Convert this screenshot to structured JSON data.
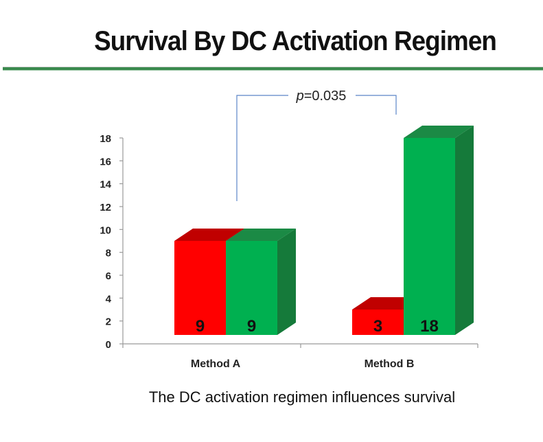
{
  "title": "Survival By DC Activation Regimen",
  "caption": "The DC activation regimen influences survival",
  "colors": {
    "series1": "#ff0000",
    "series2": "#00b050",
    "bracket": "#5b85c8"
  },
  "chart_data": {
    "type": "bar",
    "categories": [
      "Method A",
      "Method B"
    ],
    "series": [
      {
        "values": [
          9,
          3
        ]
      },
      {
        "values": [
          9,
          18
        ]
      }
    ],
    "data_labels": [
      [
        "9",
        "9"
      ],
      [
        "3",
        "18"
      ]
    ],
    "ylim": [
      0,
      18
    ],
    "yticks": [
      0,
      2,
      4,
      6,
      8,
      10,
      12,
      14,
      16,
      18
    ],
    "annotation": {
      "prefix": "p",
      "text": "=0.035"
    },
    "grid": false,
    "legend": "none"
  }
}
